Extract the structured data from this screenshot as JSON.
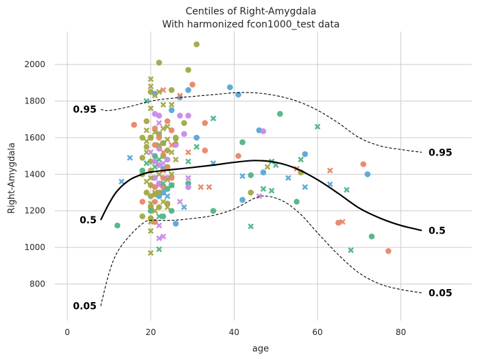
{
  "chart_data": {
    "type": "scatter",
    "title": "Centiles of Right-Amygdala",
    "subtitle": "With harmonized fcon1000_test data",
    "xlabel": "age",
    "ylabel": "Right-Amygdala",
    "xlim": [
      -3,
      97
    ],
    "ylim": [
      600,
      2180
    ],
    "xticks": [
      0,
      20,
      40,
      60,
      80
    ],
    "yticks": [
      800,
      1000,
      1200,
      1400,
      1600,
      1800,
      2000
    ],
    "grid": true,
    "palette": [
      "#e8866a",
      "#a3a846",
      "#50b585",
      "#56a7d8",
      "#c98ae8"
    ],
    "centiles": [
      {
        "label": "0.95",
        "style": "dashed",
        "points": [
          [
            8,
            1755
          ],
          [
            10,
            1748
          ],
          [
            15,
            1770
          ],
          [
            20,
            1800
          ],
          [
            25,
            1815
          ],
          [
            30,
            1825
          ],
          [
            35,
            1835
          ],
          [
            40,
            1845
          ],
          [
            45,
            1845
          ],
          [
            50,
            1830
          ],
          [
            55,
            1800
          ],
          [
            60,
            1750
          ],
          [
            65,
            1680
          ],
          [
            70,
            1600
          ],
          [
            75,
            1555
          ],
          [
            80,
            1535
          ],
          [
            85,
            1520
          ]
        ]
      },
      {
        "label": "0.5",
        "style": "solid",
        "points": [
          [
            8,
            1150
          ],
          [
            10,
            1240
          ],
          [
            12,
            1310
          ],
          [
            15,
            1370
          ],
          [
            18,
            1400
          ],
          [
            20,
            1412
          ],
          [
            25,
            1425
          ],
          [
            30,
            1437
          ],
          [
            35,
            1450
          ],
          [
            40,
            1465
          ],
          [
            45,
            1475
          ],
          [
            50,
            1465
          ],
          [
            55,
            1430
          ],
          [
            60,
            1370
          ],
          [
            65,
            1295
          ],
          [
            70,
            1215
          ],
          [
            75,
            1160
          ],
          [
            80,
            1120
          ],
          [
            85,
            1093
          ]
        ]
      },
      {
        "label": "0.05",
        "style": "dashed",
        "points": [
          [
            8,
            680
          ],
          [
            10,
            860
          ],
          [
            12,
            975
          ],
          [
            15,
            1065
          ],
          [
            18,
            1130
          ],
          [
            20,
            1148
          ],
          [
            25,
            1148
          ],
          [
            30,
            1158
          ],
          [
            35,
            1175
          ],
          [
            40,
            1210
          ],
          [
            45,
            1270
          ],
          [
            48,
            1280
          ],
          [
            52,
            1250
          ],
          [
            56,
            1180
          ],
          [
            60,
            1080
          ],
          [
            65,
            960
          ],
          [
            70,
            860
          ],
          [
            75,
            800
          ],
          [
            80,
            770
          ],
          [
            85,
            752
          ]
        ]
      }
    ],
    "series": [
      {
        "marker": "circle",
        "points": [
          [
            12,
            1120,
            2
          ],
          [
            16,
            1670,
            0
          ],
          [
            18,
            1250,
            0
          ],
          [
            18,
            1400,
            1
          ],
          [
            18,
            1490,
            1
          ],
          [
            18,
            1600,
            1
          ],
          [
            18,
            1170,
            1
          ],
          [
            18,
            1420,
            2
          ],
          [
            19,
            1690,
            1
          ],
          [
            19,
            1300,
            1
          ],
          [
            19,
            1550,
            1
          ],
          [
            20,
            1850,
            1
          ],
          [
            20,
            1340,
            1
          ],
          [
            20,
            1220,
            1
          ],
          [
            20,
            1280,
            1
          ],
          [
            20,
            1420,
            1
          ],
          [
            20,
            1470,
            1
          ],
          [
            20,
            1200,
            2
          ],
          [
            20,
            1600,
            1
          ],
          [
            20,
            1160,
            1
          ],
          [
            21,
            1650,
            0
          ],
          [
            21,
            1730,
            4
          ],
          [
            21,
            1330,
            0
          ],
          [
            21,
            1470,
            4
          ],
          [
            21,
            1560,
            0
          ],
          [
            21,
            1250,
            0
          ],
          [
            21,
            1840,
            3
          ],
          [
            21,
            1500,
            2
          ],
          [
            21,
            1290,
            1
          ],
          [
            21,
            1380,
            4
          ],
          [
            21,
            1140,
            0
          ],
          [
            22,
            2010,
            1
          ],
          [
            22,
            1720,
            4
          ],
          [
            22,
            1620,
            4
          ],
          [
            22,
            1350,
            4
          ],
          [
            22,
            1280,
            3
          ],
          [
            22,
            1450,
            4
          ],
          [
            22,
            1540,
            4
          ],
          [
            22,
            1300,
            1
          ],
          [
            22,
            1220,
            1
          ],
          [
            22,
            1600,
            0
          ],
          [
            23,
            1570,
            2
          ],
          [
            23,
            1430,
            3
          ],
          [
            23,
            1330,
            0
          ],
          [
            23,
            1300,
            3
          ],
          [
            23,
            1170,
            2
          ],
          [
            23,
            1500,
            1
          ],
          [
            23,
            1380,
            0
          ],
          [
            24,
            1530,
            1
          ],
          [
            24,
            1690,
            0
          ],
          [
            24,
            1480,
            4
          ],
          [
            24,
            1380,
            4
          ],
          [
            24,
            1320,
            2
          ],
          [
            24,
            1440,
            1
          ],
          [
            24,
            1240,
            1
          ],
          [
            25,
            1640,
            0
          ],
          [
            25,
            1860,
            1
          ],
          [
            25,
            1200,
            2
          ],
          [
            25,
            1380,
            0
          ],
          [
            25,
            1340,
            2
          ],
          [
            25,
            1750,
            3
          ],
          [
            26,
            1130,
            3
          ],
          [
            26,
            1560,
            4
          ],
          [
            26,
            1600,
            1
          ],
          [
            27,
            1820,
            3
          ],
          [
            27,
            1720,
            4
          ],
          [
            28,
            1680,
            1
          ],
          [
            28,
            1620,
            4
          ],
          [
            29,
            1970,
            1
          ],
          [
            29,
            1860,
            3
          ],
          [
            29,
            1720,
            4
          ],
          [
            29,
            1350,
            2
          ],
          [
            29,
            1330,
            4
          ],
          [
            30,
            1890,
            0
          ],
          [
            31,
            2110,
            1
          ],
          [
            31,
            1600,
            3
          ],
          [
            33,
            1680,
            0
          ],
          [
            33,
            1530,
            0
          ],
          [
            35,
            1200,
            2
          ],
          [
            39,
            1875,
            3
          ],
          [
            41,
            1500,
            0
          ],
          [
            41,
            1835,
            3
          ],
          [
            42,
            1575,
            2
          ],
          [
            42,
            1260,
            3
          ],
          [
            44,
            1395,
            2
          ],
          [
            44,
            1300,
            1
          ],
          [
            46,
            1640,
            3
          ],
          [
            47,
            1410,
            3
          ],
          [
            47,
            1635,
            4
          ],
          [
            51,
            1730,
            2
          ],
          [
            55,
            1250,
            2
          ],
          [
            56,
            1410,
            1
          ],
          [
            57,
            1510,
            3
          ],
          [
            65,
            1135,
            0
          ],
          [
            71,
            1455,
            0
          ],
          [
            72,
            1400,
            3
          ],
          [
            73,
            1060,
            2
          ],
          [
            77,
            980,
            0
          ]
        ]
      },
      {
        "marker": "x",
        "points": [
          [
            13,
            1360,
            3
          ],
          [
            15,
            1490,
            3
          ],
          [
            19,
            1800,
            2
          ],
          [
            19,
            1640,
            1
          ],
          [
            19,
            1580,
            1
          ],
          [
            19,
            1520,
            1
          ],
          [
            19,
            1460,
            2
          ],
          [
            19,
            1360,
            1
          ],
          [
            20,
            1920,
            1
          ],
          [
            20,
            1880,
            1
          ],
          [
            20,
            1760,
            1
          ],
          [
            20,
            1600,
            1
          ],
          [
            20,
            1520,
            4
          ],
          [
            20,
            1380,
            1
          ],
          [
            20,
            1240,
            1
          ],
          [
            20,
            1140,
            1
          ],
          [
            20,
            1090,
            1
          ],
          [
            20,
            970,
            1
          ],
          [
            21,
            1830,
            1
          ],
          [
            21,
            1630,
            1
          ],
          [
            21,
            1440,
            2
          ],
          [
            21,
            1300,
            1
          ],
          [
            21,
            1200,
            1
          ],
          [
            22,
            1850,
            1
          ],
          [
            22,
            1680,
            4
          ],
          [
            22,
            1620,
            1
          ],
          [
            22,
            1560,
            1
          ],
          [
            22,
            1480,
            2
          ],
          [
            22,
            1400,
            1
          ],
          [
            22,
            1340,
            4
          ],
          [
            22,
            1300,
            1
          ],
          [
            22,
            1170,
            2
          ],
          [
            22,
            1120,
            4
          ],
          [
            22,
            1050,
            4
          ],
          [
            22,
            990,
            2
          ],
          [
            23,
            1860,
            0
          ],
          [
            23,
            1780,
            1
          ],
          [
            23,
            1650,
            1
          ],
          [
            23,
            1570,
            1
          ],
          [
            23,
            1520,
            0
          ],
          [
            23,
            1460,
            4
          ],
          [
            23,
            1420,
            0
          ],
          [
            23,
            1350,
            2
          ],
          [
            23,
            1250,
            1
          ],
          [
            23,
            1060,
            4
          ],
          [
            24,
            1660,
            1
          ],
          [
            24,
            1590,
            1
          ],
          [
            24,
            1430,
            0
          ],
          [
            24,
            1370,
            1
          ],
          [
            24,
            1280,
            3
          ],
          [
            24,
            1220,
            1
          ],
          [
            25,
            1780,
            1
          ],
          [
            25,
            1560,
            0
          ],
          [
            25,
            1520,
            1
          ],
          [
            25,
            1400,
            1
          ],
          [
            25,
            1340,
            2
          ],
          [
            26,
            1580,
            1
          ],
          [
            26,
            1480,
            1
          ],
          [
            27,
            1830,
            0
          ],
          [
            27,
            1250,
            4
          ],
          [
            28,
            1220,
            3
          ],
          [
            29,
            1520,
            0
          ],
          [
            29,
            1470,
            2
          ],
          [
            29,
            1380,
            4
          ],
          [
            31,
            1550,
            2
          ],
          [
            32,
            1330,
            0
          ],
          [
            34,
            1330,
            0
          ],
          [
            35,
            1705,
            2
          ],
          [
            35,
            1460,
            3
          ],
          [
            42,
            1390,
            3
          ],
          [
            44,
            1115,
            2
          ],
          [
            46,
            1280,
            4
          ],
          [
            47,
            1320,
            2
          ],
          [
            48,
            1440,
            1
          ],
          [
            49,
            1310,
            2
          ],
          [
            49,
            1470,
            2
          ],
          [
            50,
            1450,
            2
          ],
          [
            53,
            1380,
            3
          ],
          [
            55,
            1430,
            0
          ],
          [
            56,
            1480,
            2
          ],
          [
            57,
            1330,
            3
          ],
          [
            60,
            1660,
            2
          ],
          [
            63,
            1420,
            0
          ],
          [
            63,
            1345,
            3
          ],
          [
            66,
            1140,
            0
          ],
          [
            67,
            1315,
            2
          ],
          [
            68,
            985,
            2
          ]
        ]
      }
    ]
  }
}
